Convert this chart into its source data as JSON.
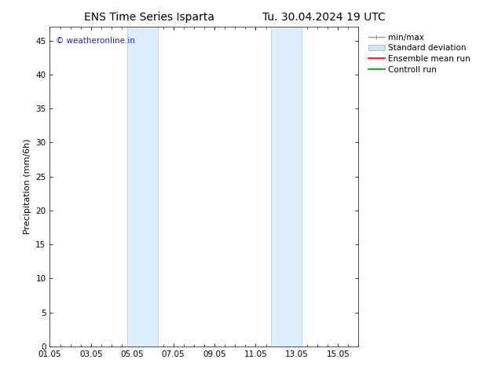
{
  "title_left": "ENS Time Series Isparta",
  "title_right": "Tu. 30.04.2024 19 UTC",
  "ylabel": "Precipitation (mm/6h)",
  "watermark": "© weatheronline.in",
  "watermark_color": "#2222cc",
  "xlim_start": 0,
  "xlim_end": 15,
  "ylim_min": 0,
  "ylim_max": 47,
  "yticks": [
    0,
    5,
    10,
    15,
    20,
    25,
    30,
    35,
    40,
    45
  ],
  "xtick_labels": [
    "01.05",
    "03.05",
    "05.05",
    "07.05",
    "09.05",
    "11.05",
    "13.05",
    "15.05"
  ],
  "xtick_positions": [
    0,
    2,
    4,
    6,
    8,
    10,
    12,
    14
  ],
  "shaded_bands": [
    {
      "x_start": 3.75,
      "x_end": 5.25
    },
    {
      "x_start": 10.75,
      "x_end": 12.25
    }
  ],
  "shade_color": "#ddeeff",
  "shade_edge_color": "#b8cce4",
  "bg_color": "#ffffff",
  "legend_items": [
    {
      "label": "min/max",
      "color": "#999999",
      "lw": 1.0,
      "style": "solid"
    },
    {
      "label": "Standard deviation",
      "color": "#d0e4f0",
      "lw": 8,
      "style": "solid"
    },
    {
      "label": "Ensemble mean run",
      "color": "#ff0000",
      "lw": 1.2,
      "style": "solid"
    },
    {
      "label": "Controll run",
      "color": "#008800",
      "lw": 1.2,
      "style": "solid"
    }
  ],
  "title_fontsize": 10,
  "axis_fontsize": 8,
  "tick_fontsize": 7.5,
  "legend_fontsize": 7.5
}
